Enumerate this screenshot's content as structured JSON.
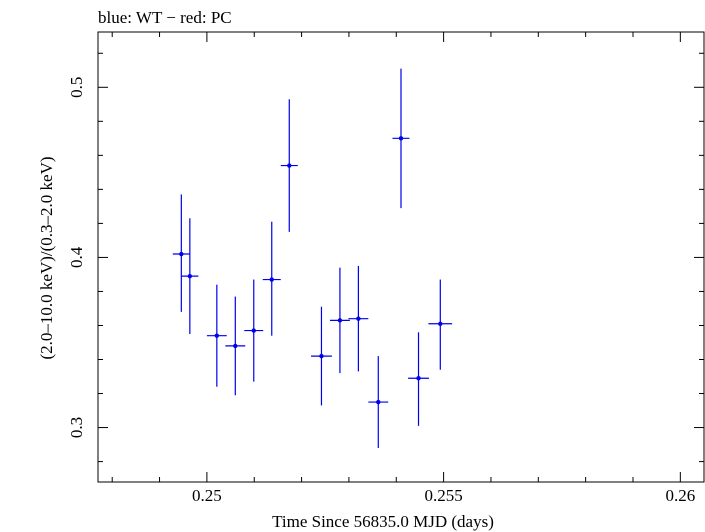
{
  "chart_data": {
    "type": "scatter",
    "title": "blue: WT − red: PC",
    "xlabel": "Time Since 56835.0 MJD (days)",
    "ylabel": "(2.0–10.0 keV)/(0.3–2.0 keV)",
    "xlim": [
      0.2477,
      0.2605
    ],
    "ylim": [
      0.268,
      0.5325
    ],
    "x_ticks": [
      {
        "value": 0.25,
        "label": "0.25"
      },
      {
        "value": 0.255,
        "label": "0.255"
      },
      {
        "value": 0.26,
        "label": "0.26"
      }
    ],
    "y_ticks": [
      {
        "value": 0.3,
        "label": "0.3"
      },
      {
        "value": 0.4,
        "label": "0.4"
      },
      {
        "value": 0.5,
        "label": "0.5"
      }
    ],
    "series": [
      {
        "color": "#0000ee",
        "points": [
          {
            "x": 0.24946,
            "xerr": 0.00018,
            "y": 0.402,
            "yerr": [
              0.034,
              0.035
            ]
          },
          {
            "x": 0.24964,
            "xerr": 0.00018,
            "y": 0.389,
            "yerr": [
              0.034,
              0.034
            ]
          },
          {
            "x": 0.25021,
            "xerr": 0.00021,
            "y": 0.354,
            "yerr": [
              0.03,
              0.03
            ]
          },
          {
            "x": 0.2506,
            "xerr": 0.00021,
            "y": 0.348,
            "yerr": [
              0.029,
              0.029
            ]
          },
          {
            "x": 0.25099,
            "xerr": 0.0002,
            "y": 0.357,
            "yerr": [
              0.03,
              0.03
            ]
          },
          {
            "x": 0.25137,
            "xerr": 0.00019,
            "y": 0.387,
            "yerr": [
              0.033,
              0.034
            ]
          },
          {
            "x": 0.25174,
            "xerr": 0.00018,
            "y": 0.454,
            "yerr": [
              0.039,
              0.039
            ]
          },
          {
            "x": 0.25242,
            "xerr": 0.00022,
            "y": 0.342,
            "yerr": [
              0.029,
              0.029
            ]
          },
          {
            "x": 0.25281,
            "xerr": 0.00021,
            "y": 0.363,
            "yerr": [
              0.031,
              0.031
            ]
          },
          {
            "x": 0.2532,
            "xerr": 0.00021,
            "y": 0.364,
            "yerr": [
              0.031,
              0.031
            ]
          },
          {
            "x": 0.25362,
            "xerr": 0.00021,
            "y": 0.315,
            "yerr": [
              0.027,
              0.027
            ]
          },
          {
            "x": 0.2541,
            "xerr": 0.00018,
            "y": 0.47,
            "yerr": [
              0.041,
              0.041
            ]
          },
          {
            "x": 0.25447,
            "xerr": 0.00022,
            "y": 0.329,
            "yerr": [
              0.028,
              0.027
            ]
          },
          {
            "x": 0.25493,
            "xerr": 0.00025,
            "y": 0.361,
            "yerr": [
              0.027,
              0.026
            ]
          }
        ]
      }
    ],
    "grid": false,
    "legend": "none"
  }
}
